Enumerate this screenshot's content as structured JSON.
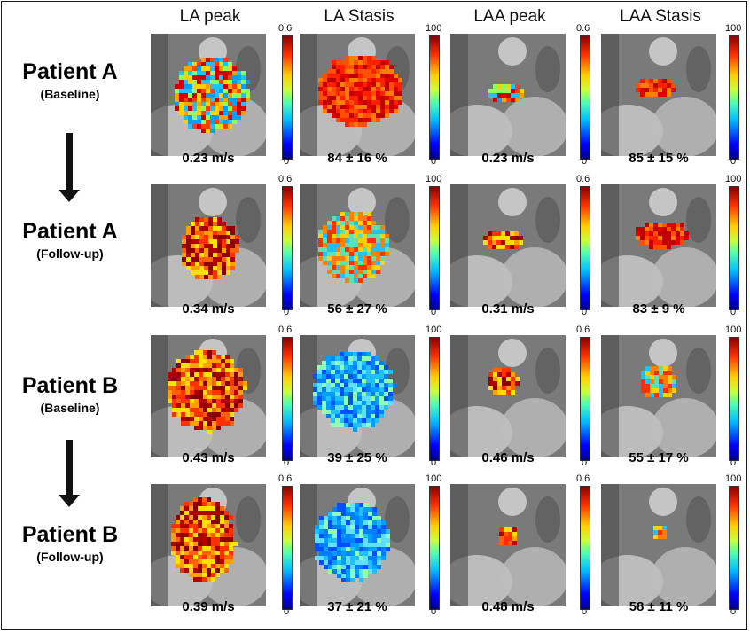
{
  "columns": [
    "LA peak",
    "LA Stasis",
    "LAA peak",
    "LAA Stasis"
  ],
  "colorbar_ticks": {
    "velocity": {
      "max": "0.6",
      "min": "0"
    },
    "stasis": {
      "max": "100",
      "min": "0"
    }
  },
  "rows": [
    {
      "patient": "Patient A",
      "phase": "(Baseline)",
      "values": [
        "0.23 m/s",
        "84 ± 16 %",
        "0.23 m/s",
        "85 ± 15 %"
      ]
    },
    {
      "patient": "Patient A",
      "phase": "(Follow-up)",
      "values": [
        "0.34 m/s",
        "56 ± 27 %",
        "0.31 m/s",
        "83 ± 9 %"
      ]
    },
    {
      "patient": "Patient B",
      "phase": "(Baseline)",
      "values": [
        "0.43 m/s",
        "39 ± 25 %",
        "0.46 m/s",
        "55 ± 17 %"
      ]
    },
    {
      "patient": "Patient B",
      "phase": "(Follow-up)",
      "values": [
        "0.39 m/s",
        "37 ± 21 %",
        "0.48 m/s",
        "58 ± 11 %"
      ]
    }
  ],
  "colors": {
    "colormap": "jet",
    "border": "#1a1a1a",
    "arrow": "#111111"
  }
}
